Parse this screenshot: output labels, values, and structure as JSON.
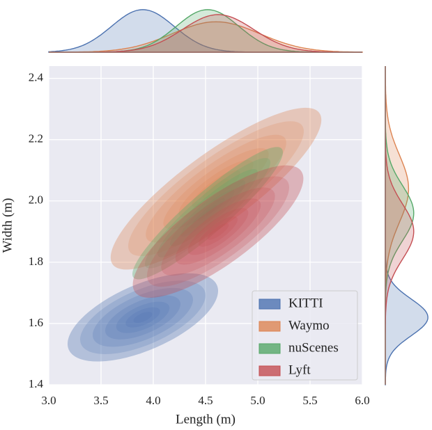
{
  "chart_data": {
    "type": "joint-kde",
    "xlabel": "Length (m)",
    "ylabel": "Width (m)",
    "xlim": [
      3.0,
      6.0
    ],
    "ylim": [
      1.4,
      2.44
    ],
    "xticks": [
      {
        "value": 3.0,
        "label": "3.0"
      },
      3.5,
      {
        "value": 4.0,
        "label": "4.0"
      },
      4.5,
      {
        "value": 5.0,
        "label": "5.0"
      },
      5.5,
      {
        "value": 6.0,
        "label": "6.0"
      }
    ],
    "yticks": [
      1.4,
      1.6,
      1.8,
      {
        "value": 2.0,
        "label": "2.0"
      },
      2.2,
      2.4
    ],
    "grid": true,
    "legend": "lower right",
    "series": [
      {
        "name": "KITTI",
        "color": "#4c72b0",
        "mode_x": 3.9,
        "mode_y": 1.62,
        "sd_x": 0.3,
        "sd_y": 0.06,
        "corr": 0.6
      },
      {
        "name": "Waymo",
        "color": "#dd8452",
        "mode_x": 4.6,
        "mode_y": 2.04,
        "sd_x": 0.42,
        "sd_y": 0.11,
        "corr": 0.85
      },
      {
        "name": "nuScenes",
        "color": "#55a868",
        "mode_x": 4.52,
        "mode_y": 1.96,
        "sd_x": 0.3,
        "sd_y": 0.09,
        "corr": 0.92
      },
      {
        "name": "Lyft",
        "color": "#c44e52",
        "mode_x": 4.62,
        "mode_y": 1.9,
        "sd_x": 0.34,
        "sd_y": 0.09,
        "corr": 0.8
      }
    ]
  }
}
